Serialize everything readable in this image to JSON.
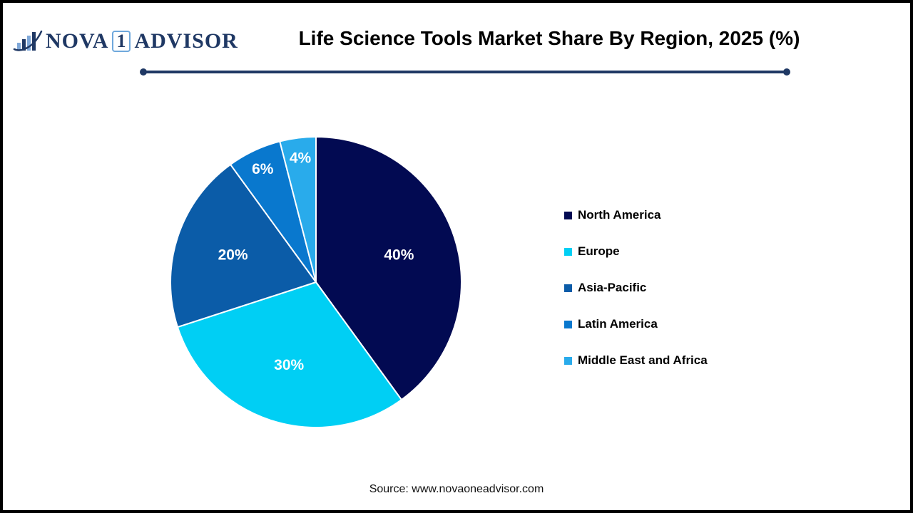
{
  "logo": {
    "icon": "bar-chart-swoosh-icon",
    "text_nova": "NOVA",
    "text_one": "1",
    "text_advisor": "ADVISOR",
    "brand_color": "#1F3864",
    "box_border_color": "#6FA8DC"
  },
  "header": {
    "title": "Life Science Tools Market Share By Region, 2025 (%)",
    "divider_color": "#1F3864"
  },
  "chart_data": {
    "type": "pie",
    "title": "Life Science Tools Market Share By Region, 2025 (%)",
    "unit": "%",
    "start_angle_deg": 0,
    "direction": "clockwise",
    "legend_position": "right",
    "label_color": "#FFFFFF",
    "slice_border_color": "#FFFFFF",
    "slices": [
      {
        "label": "North America",
        "value": 40,
        "display": "40%",
        "color": "#020A52"
      },
      {
        "label": "Europe",
        "value": 30,
        "display": "30%",
        "color": "#00CFF4"
      },
      {
        "label": "Asia-Pacific",
        "value": 20,
        "display": "20%",
        "color": "#0B5CA8"
      },
      {
        "label": "Latin America",
        "value": 6,
        "display": "6%",
        "color": "#0978CE"
      },
      {
        "label": "Middle East and Africa",
        "value": 4,
        "display": "4%",
        "color": "#29ABEB"
      }
    ]
  },
  "footer": {
    "source": "Source: www.novaoneadvisor.com"
  }
}
